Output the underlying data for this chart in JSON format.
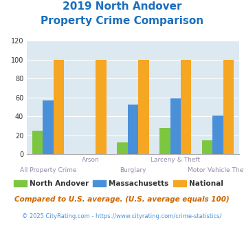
{
  "title_line1": "2019 North Andover",
  "title_line2": "Property Crime Comparison",
  "categories": [
    "All Property Crime",
    "Arson",
    "Burglary",
    "Larceny & Theft",
    "Motor Vehicle Theft"
  ],
  "north_andover": [
    25,
    0,
    13,
    28,
    15
  ],
  "massachusetts": [
    57,
    0,
    53,
    59,
    41
  ],
  "national": [
    100,
    100,
    100,
    100,
    100
  ],
  "colors": {
    "north_andover": "#7dc642",
    "massachusetts": "#4a90d9",
    "national": "#f5a623"
  },
  "ylim": [
    0,
    120
  ],
  "yticks": [
    0,
    20,
    40,
    60,
    80,
    100,
    120
  ],
  "background_color": "#dce9f0",
  "title_color": "#1a6fbd",
  "xlabel_color": "#9988aa",
  "legend_labels": [
    "North Andover",
    "Massachusetts",
    "National"
  ],
  "footnote1": "Compared to U.S. average. (U.S. average equals 100)",
  "footnote2": "© 2025 CityRating.com - https://www.cityrating.com/crime-statistics/",
  "footnote1_color": "#cc6600",
  "footnote2_color": "#4a90d9"
}
